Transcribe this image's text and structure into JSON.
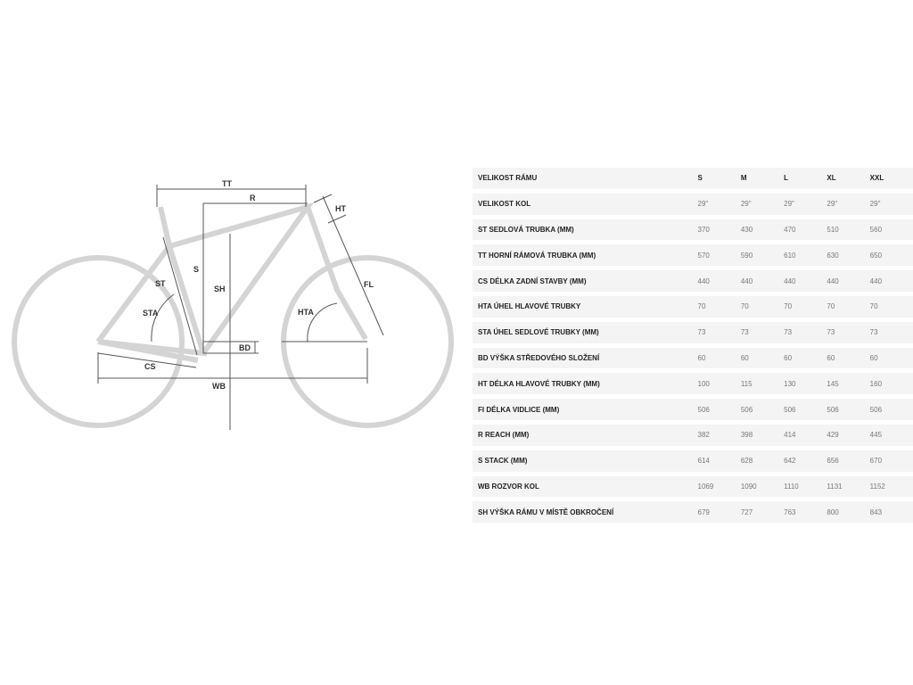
{
  "diagram": {
    "labels": {
      "tt": "TT",
      "r": "R",
      "ht": "HT",
      "s": "S",
      "sh": "SH",
      "st": "ST",
      "sta": "STA",
      "fl": "FL",
      "hta": "HTA",
      "bd": "BD",
      "cs": "CS",
      "wb": "WB"
    },
    "colors": {
      "frame": "#d4d4d4",
      "lines": "#555555"
    }
  },
  "table": {
    "header": {
      "label": "VELIKOST RÁMU",
      "sizes": [
        "S",
        "M",
        "L",
        "XL",
        "XXL"
      ]
    },
    "rows": [
      {
        "label": "VELIKOST KOL",
        "values": [
          "29\"",
          "29\"",
          "29\"",
          "29\"",
          "29\""
        ]
      },
      {
        "label": "ST SEDLOVÁ TRUBKA (MM)",
        "values": [
          "370",
          "430",
          "470",
          "510",
          "560"
        ]
      },
      {
        "label": "TT HORNÍ RÁMOVÁ TRUBKA (MM)",
        "values": [
          "570",
          "590",
          "610",
          "630",
          "650"
        ]
      },
      {
        "label": "CS DÉLKA ZADNÍ STAVBY (MM)",
        "values": [
          "440",
          "440",
          "440",
          "440",
          "440"
        ]
      },
      {
        "label": "HTA ÚHEL HLAVOVÉ TRUBKY",
        "values": [
          "70",
          "70",
          "70",
          "70",
          "70"
        ]
      },
      {
        "label": "STA ÚHEL SEDLOVÉ TRUBKY (MM)",
        "values": [
          "73",
          "73",
          "73",
          "73",
          "73"
        ]
      },
      {
        "label": "BD VÝŠKA STŘEDOVÉHO SLOŽENÍ",
        "values": [
          "60",
          "60",
          "60",
          "60",
          "60"
        ]
      },
      {
        "label": "HT DÉLKA HLAVOVÉ TRUBKY (MM)",
        "values": [
          "100",
          "115",
          "130",
          "145",
          "160"
        ]
      },
      {
        "label": "FI DÉLKA VIDLICE (MM)",
        "values": [
          "506",
          "506",
          "506",
          "506",
          "506"
        ]
      },
      {
        "label": "R REACH (MM)",
        "values": [
          "382",
          "398",
          "414",
          "429",
          "445"
        ]
      },
      {
        "label": "S STACK (MM)",
        "values": [
          "614",
          "628",
          "642",
          "656",
          "670"
        ]
      },
      {
        "label": "WB ROZVOR KOL",
        "values": [
          "1069",
          "1090",
          "1110",
          "1131",
          "1152"
        ]
      },
      {
        "label": "SH VÝŠKA RÁMU V MÍSTĚ OBKROČENÍ",
        "values": [
          "679",
          "727",
          "763",
          "800",
          "843"
        ]
      }
    ]
  }
}
